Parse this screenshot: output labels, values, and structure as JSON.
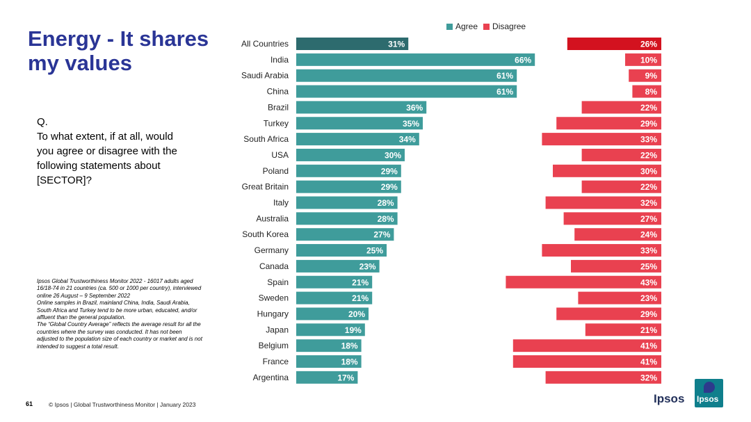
{
  "title": {
    "line1": "Energy - It shares",
    "line2": "my values"
  },
  "question": {
    "lines": [
      "Q.",
      "To what extent, if at all, would",
      "you agree or disagree with the",
      "following statements about",
      "[SECTOR]?"
    ]
  },
  "notes": {
    "lines": [
      "Ipsos Global Trustworthiness Monitor 2022 - 16017 adults aged",
      "16/18-74 in 21 countries (ca. 500 or 1000 per country), interviewed",
      "online 26 August – 9 September 2022",
      "Online samples in Brazil, mainland China, India, Saudi Arabia,",
      "South Africa and Turkey tend to be more urban, educated, and/or",
      "affluent than the general population.",
      "The “Global Country Average” reflects the average result for all the",
      "countries where the survey was conducted. It has not been",
      "adjusted to the population size of each country or market and is not",
      "intended to suggest a total result."
    ]
  },
  "footer": {
    "page": "61",
    "text": "© Ipsos | Global Trustworthiness Monitor | January 2023"
  },
  "logo": {
    "word": "Ipsos",
    "box_text": "Ipsos"
  },
  "colors": {
    "agree": "#3f9c9b",
    "agree_highlight": "#2d6b6e",
    "disagree": "#e94150",
    "disagree_highlight": "#d3121f",
    "title": "#2a3596"
  },
  "chart_data": {
    "type": "bar",
    "orientation": "horizontal-diverging",
    "legend": [
      "Agree",
      "Disagree"
    ],
    "legend_position": "top",
    "categories": [
      "All Countries",
      "India",
      "Saudi Arabia",
      "China",
      "Brazil",
      "Turkey",
      "South Africa",
      "USA",
      "Poland",
      "Great Britain",
      "Italy",
      "Australia",
      "South Korea",
      "Germany",
      "Canada",
      "Spain",
      "Sweden",
      "Hungary",
      "Japan",
      "Belgium",
      "France",
      "Argentina"
    ],
    "series": [
      {
        "name": "Agree",
        "values": [
          31,
          66,
          61,
          61,
          36,
          35,
          34,
          30,
          29,
          29,
          28,
          28,
          27,
          25,
          23,
          21,
          21,
          20,
          19,
          18,
          18,
          17
        ]
      },
      {
        "name": "Disagree",
        "values": [
          26,
          10,
          9,
          8,
          22,
          29,
          33,
          22,
          30,
          22,
          32,
          27,
          24,
          33,
          25,
          43,
          23,
          29,
          21,
          41,
          41,
          32
        ]
      }
    ],
    "value_labels": {
      "agree": [
        "31%",
        "66%",
        "61%",
        "61%",
        "36%",
        "35%",
        "34%",
        "30%",
        "29%",
        "29%",
        "28%",
        "28%",
        "27%",
        "25%",
        "23%",
        "21%",
        "21%",
        "20%",
        "19%",
        "18%",
        "18%",
        "17%"
      ],
      "disagree": [
        "26%",
        "10%",
        "9%",
        "8%",
        "22%",
        "29%",
        "33%",
        "22%",
        "30%",
        "22%",
        "32%",
        "27%",
        "24%",
        "33%",
        "25%",
        "43%",
        "23%",
        "29%",
        "21%",
        "41%",
        "41%",
        "32%"
      ]
    },
    "highlight_category": "All Countries",
    "xlim": [
      0,
      100
    ]
  }
}
